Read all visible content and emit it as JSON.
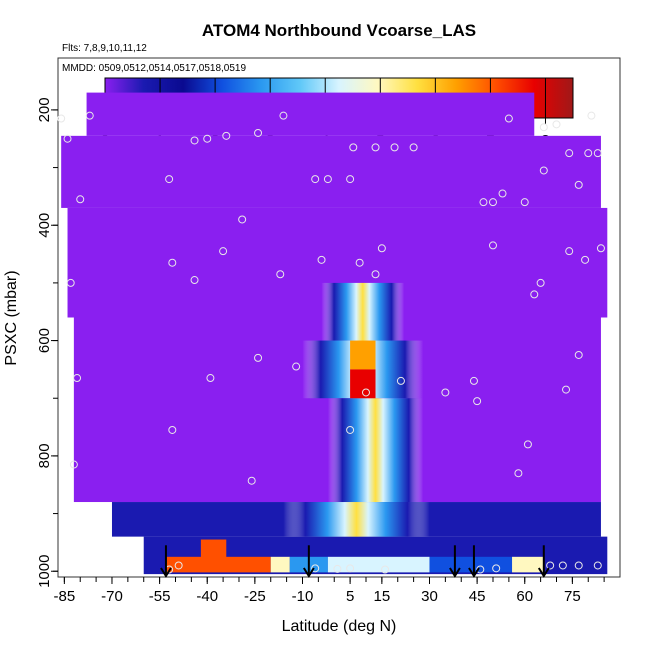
{
  "chart_data": {
    "type": "heatmap",
    "title": "ATOM4 Northbound Vcoarse_LAS",
    "flights_label": "Flts: 7,8,9,10,11,12",
    "mmdd_label": "MMDD: 0509,0512,0514,0517,0518,0519",
    "xlabel": "Latitude (deg N)",
    "ylabel": "PSXC (mbar)",
    "xlim": [
      -87,
      90
    ],
    "ylim": [
      1010,
      110
    ],
    "y_reversed": true,
    "x_ticks": [
      -85,
      -70,
      -55,
      -40,
      -25,
      -10,
      5,
      15,
      30,
      45,
      60,
      75
    ],
    "x_ticks_labeled": [
      -85,
      -70,
      -55,
      -40,
      -25,
      -10,
      5,
      15,
      30,
      45,
      60,
      75
    ],
    "y_ticks": [
      200,
      400,
      600,
      800,
      1000
    ],
    "colorbar": {
      "range": [
        0,
        8.5
      ],
      "ticks": [
        0,
        1,
        2,
        3,
        4,
        5,
        6,
        7,
        8
      ],
      "colors": [
        "#8a1ff0",
        "#1a1ab0",
        "#0a0a90",
        "#1050e0",
        "#2a98f0",
        "#60c8f8",
        "#d8f4ff",
        "#fff8c0",
        "#ffe040",
        "#ffa000",
        "#ff5000",
        "#e80000",
        "#a01818"
      ]
    },
    "grid": false,
    "field": [
      {
        "p": 170,
        "value": 0.2
      },
      {
        "p": 350,
        "value": 0.3
      },
      {
        "p": 500,
        "value": 0.3
      },
      {
        "p": 640,
        "value": 0.4,
        "note": "hotspot"
      },
      {
        "p": 970,
        "value": 0.8
      }
    ],
    "hotspots": [
      {
        "lat": 9,
        "p_top": 600,
        "p_bot": 650,
        "value": 6.0
      },
      {
        "lat": 9,
        "p_top": 650,
        "p_bot": 700,
        "value": 7.2
      },
      {
        "lat": -38,
        "p_top": 945,
        "p_bot": 985,
        "value": 7.0
      }
    ],
    "arrows_lat": [
      -53,
      -8,
      38,
      44,
      66
    ],
    "observation_markers": [
      {
        "lat": -86,
        "p": 215
      },
      {
        "lat": -77,
        "p": 210
      },
      {
        "lat": -84,
        "p": 250
      },
      {
        "lat": -80,
        "p": 355
      },
      {
        "lat": -83,
        "p": 500
      },
      {
        "lat": -81,
        "p": 665
      },
      {
        "lat": -82,
        "p": 815
      },
      {
        "lat": -52,
        "p": 320
      },
      {
        "lat": -44,
        "p": 253
      },
      {
        "lat": -40,
        "p": 250
      },
      {
        "lat": -34,
        "p": 245
      },
      {
        "lat": -24,
        "p": 240
      },
      {
        "lat": -16,
        "p": 210
      },
      {
        "lat": -29,
        "p": 390
      },
      {
        "lat": -35,
        "p": 445
      },
      {
        "lat": -51,
        "p": 465
      },
      {
        "lat": -44,
        "p": 495
      },
      {
        "lat": -17,
        "p": 485
      },
      {
        "lat": -24,
        "p": 630
      },
      {
        "lat": -39,
        "p": 665
      },
      {
        "lat": -51,
        "p": 755
      },
      {
        "lat": -26,
        "p": 843
      },
      {
        "lat": -6,
        "p": 320
      },
      {
        "lat": -2,
        "p": 320
      },
      {
        "lat": 5,
        "p": 320
      },
      {
        "lat": 6,
        "p": 265
      },
      {
        "lat": 13,
        "p": 265
      },
      {
        "lat": 19,
        "p": 265
      },
      {
        "lat": 25,
        "p": 265
      },
      {
        "lat": 15,
        "p": 440
      },
      {
        "lat": 8,
        "p": 465
      },
      {
        "lat": 13,
        "p": 485
      },
      {
        "lat": -4,
        "p": 460
      },
      {
        "lat": -12,
        "p": 645
      },
      {
        "lat": 10,
        "p": 690
      },
      {
        "lat": 21,
        "p": 670
      },
      {
        "lat": 35,
        "p": 690
      },
      {
        "lat": 5,
        "p": 755
      },
      {
        "lat": 44,
        "p": 670
      },
      {
        "lat": 45,
        "p": 705
      },
      {
        "lat": 47,
        "p": 360
      },
      {
        "lat": 50,
        "p": 360
      },
      {
        "lat": 53,
        "p": 345
      },
      {
        "lat": 55,
        "p": 215
      },
      {
        "lat": 60,
        "p": 360
      },
      {
        "lat": 66,
        "p": 305
      },
      {
        "lat": 66,
        "p": 230
      },
      {
        "lat": 70,
        "p": 225
      },
      {
        "lat": 74,
        "p": 275
      },
      {
        "lat": 80,
        "p": 275
      },
      {
        "lat": 83,
        "p": 275
      },
      {
        "lat": 77,
        "p": 330
      },
      {
        "lat": 81,
        "p": 210
      },
      {
        "lat": 50,
        "p": 435
      },
      {
        "lat": 63,
        "p": 520
      },
      {
        "lat": 65,
        "p": 500
      },
      {
        "lat": 74,
        "p": 445
      },
      {
        "lat": 79,
        "p": 460
      },
      {
        "lat": 84,
        "p": 440
      },
      {
        "lat": 77,
        "p": 625
      },
      {
        "lat": 73,
        "p": 685
      },
      {
        "lat": 61,
        "p": 780
      },
      {
        "lat": 58,
        "p": 830
      },
      {
        "lat": 68,
        "p": 990
      },
      {
        "lat": 72,
        "p": 990
      },
      {
        "lat": 77,
        "p": 990
      },
      {
        "lat": 83,
        "p": 990
      },
      {
        "lat": -52,
        "p": 997
      },
      {
        "lat": -49,
        "p": 990
      },
      {
        "lat": -6,
        "p": 995
      },
      {
        "lat": 1,
        "p": 996
      },
      {
        "lat": 5,
        "p": 995
      },
      {
        "lat": 16,
        "p": 997
      },
      {
        "lat": 46,
        "p": 997
      },
      {
        "lat": 51,
        "p": 995
      }
    ]
  }
}
